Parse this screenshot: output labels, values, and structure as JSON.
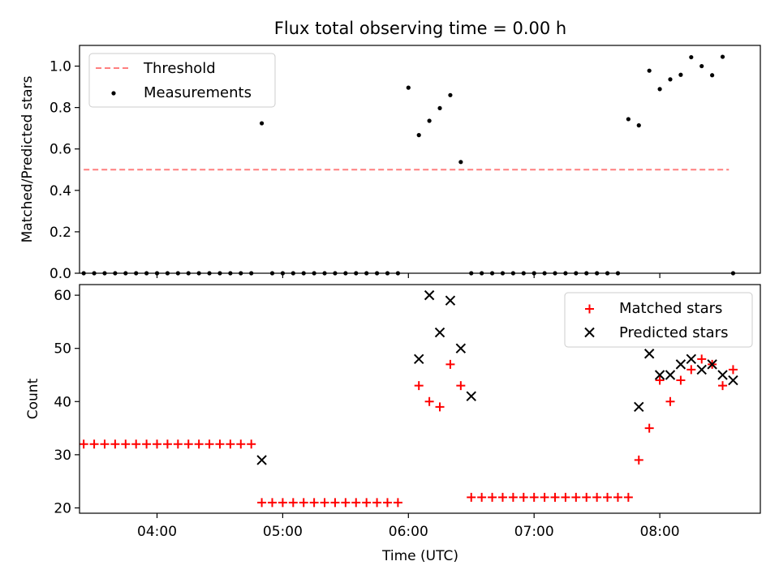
{
  "figure": {
    "title": "Flux total observing time = 0.00 h"
  },
  "colors": {
    "threshold": "#ff7f7f",
    "measurements": "#000000",
    "matched": "#ff0000",
    "predicted": "#000000"
  },
  "chart_data": [
    {
      "type": "scatter",
      "panel": "top",
      "title": "Flux total observing time = 0.00 h",
      "xlabel": "",
      "ylabel": "Matched/Predicted stars",
      "xlim": [
        "03:23",
        "08:48"
      ],
      "ylim": [
        0,
        1.1
      ],
      "yticks": [
        0.0,
        0.2,
        0.4,
        0.6,
        0.8,
        1.0
      ],
      "ytick_labels": [
        "0.0",
        "0.2",
        "0.4",
        "0.6",
        "0.8",
        "1.0"
      ],
      "grid": false,
      "legend": "upper-left",
      "legend_entries": [
        "Threshold",
        "Measurements"
      ],
      "threshold": {
        "name": "Threshold",
        "value": 0.5,
        "x_start": "03:25",
        "x_end": "08:33",
        "style": "dashed"
      },
      "series": [
        {
          "name": "Measurements",
          "marker": "dot",
          "x": [
            "03:25",
            "03:30",
            "03:35",
            "03:40",
            "03:45",
            "03:50",
            "03:55",
            "04:00",
            "04:05",
            "04:10",
            "04:15",
            "04:20",
            "04:25",
            "04:30",
            "04:35",
            "04:40",
            "04:45",
            "04:50",
            "04:55",
            "05:00",
            "05:05",
            "05:10",
            "05:15",
            "05:20",
            "05:25",
            "05:30",
            "05:35",
            "05:40",
            "05:45",
            "05:50",
            "05:55",
            "06:00",
            "06:05",
            "06:10",
            "06:15",
            "06:20",
            "06:25",
            "06:30",
            "06:35",
            "06:40",
            "06:45",
            "06:50",
            "06:55",
            "07:00",
            "07:05",
            "07:10",
            "07:15",
            "07:20",
            "07:25",
            "07:30",
            "07:35",
            "07:40",
            "07:45",
            "07:50",
            "07:55",
            "08:00",
            "08:05",
            "08:10",
            "08:15",
            "08:20",
            "08:25",
            "08:30",
            "08:35"
          ],
          "y": [
            0,
            0,
            0,
            0,
            0,
            0,
            0,
            0,
            0,
            0,
            0,
            0,
            0,
            0,
            0,
            0,
            0,
            0.724,
            0,
            0,
            0,
            0,
            0,
            0,
            0,
            0,
            0,
            0,
            0,
            0,
            0,
            0.896,
            0.667,
            0.736,
            0.797,
            0.86,
            0.537,
            0,
            0,
            0,
            0,
            0,
            0,
            0,
            0,
            0,
            0,
            0,
            0,
            0,
            0,
            0,
            0.744,
            0.714,
            0.978,
            0.889,
            0.936,
            0.958,
            1.043,
            1.0,
            0.956,
            1.045,
            0
          ]
        }
      ]
    },
    {
      "type": "scatter",
      "panel": "bottom",
      "xlabel": "Time (UTC)",
      "ylabel": "Count",
      "xlim": [
        "03:23",
        "08:48"
      ],
      "ylim": [
        19,
        62
      ],
      "xticks": [
        "04:00",
        "05:00",
        "06:00",
        "07:00",
        "08:00"
      ],
      "yticks": [
        20,
        30,
        40,
        50,
        60
      ],
      "ytick_labels": [
        "20",
        "30",
        "40",
        "50",
        "60"
      ],
      "grid": false,
      "legend": "upper-right",
      "legend_entries": [
        "Matched stars",
        "Predicted stars"
      ],
      "series": [
        {
          "name": "Matched stars",
          "marker": "plus",
          "x": [
            "03:25",
            "03:30",
            "03:35",
            "03:40",
            "03:45",
            "03:50",
            "03:55",
            "04:00",
            "04:05",
            "04:10",
            "04:15",
            "04:20",
            "04:25",
            "04:30",
            "04:35",
            "04:40",
            "04:45",
            "04:50",
            "04:55",
            "05:00",
            "05:05",
            "05:10",
            "05:15",
            "05:20",
            "05:25",
            "05:30",
            "05:35",
            "05:40",
            "05:45",
            "05:50",
            "05:55",
            "06:05",
            "06:10",
            "06:15",
            "06:20",
            "06:25",
            "06:30",
            "06:35",
            "06:40",
            "06:45",
            "06:50",
            "06:55",
            "07:00",
            "07:05",
            "07:10",
            "07:15",
            "07:20",
            "07:25",
            "07:30",
            "07:35",
            "07:40",
            "07:45",
            "07:50",
            "07:55",
            "08:00",
            "08:05",
            "08:10",
            "08:15",
            "08:20",
            "08:25",
            "08:30",
            "08:35"
          ],
          "y": [
            32,
            32,
            32,
            32,
            32,
            32,
            32,
            32,
            32,
            32,
            32,
            32,
            32,
            32,
            32,
            32,
            32,
            21,
            21,
            21,
            21,
            21,
            21,
            21,
            21,
            21,
            21,
            21,
            21,
            21,
            21,
            43,
            40,
            39,
            47,
            43,
            22,
            22,
            22,
            22,
            22,
            22,
            22,
            22,
            22,
            22,
            22,
            22,
            22,
            22,
            22,
            22,
            29,
            35,
            44,
            40,
            44,
            46,
            48,
            47,
            43,
            46
          ]
        },
        {
          "name": "Predicted stars",
          "marker": "x",
          "x": [
            "04:50",
            "06:05",
            "06:10",
            "06:15",
            "06:20",
            "06:25",
            "06:30",
            "07:50",
            "07:55",
            "08:00",
            "08:05",
            "08:10",
            "08:15",
            "08:20",
            "08:25",
            "08:30",
            "08:35"
          ],
          "y": [
            29,
            48,
            60,
            53,
            59,
            50,
            41,
            39,
            49,
            45,
            45,
            47,
            48,
            46,
            47,
            45,
            44
          ]
        }
      ]
    }
  ]
}
